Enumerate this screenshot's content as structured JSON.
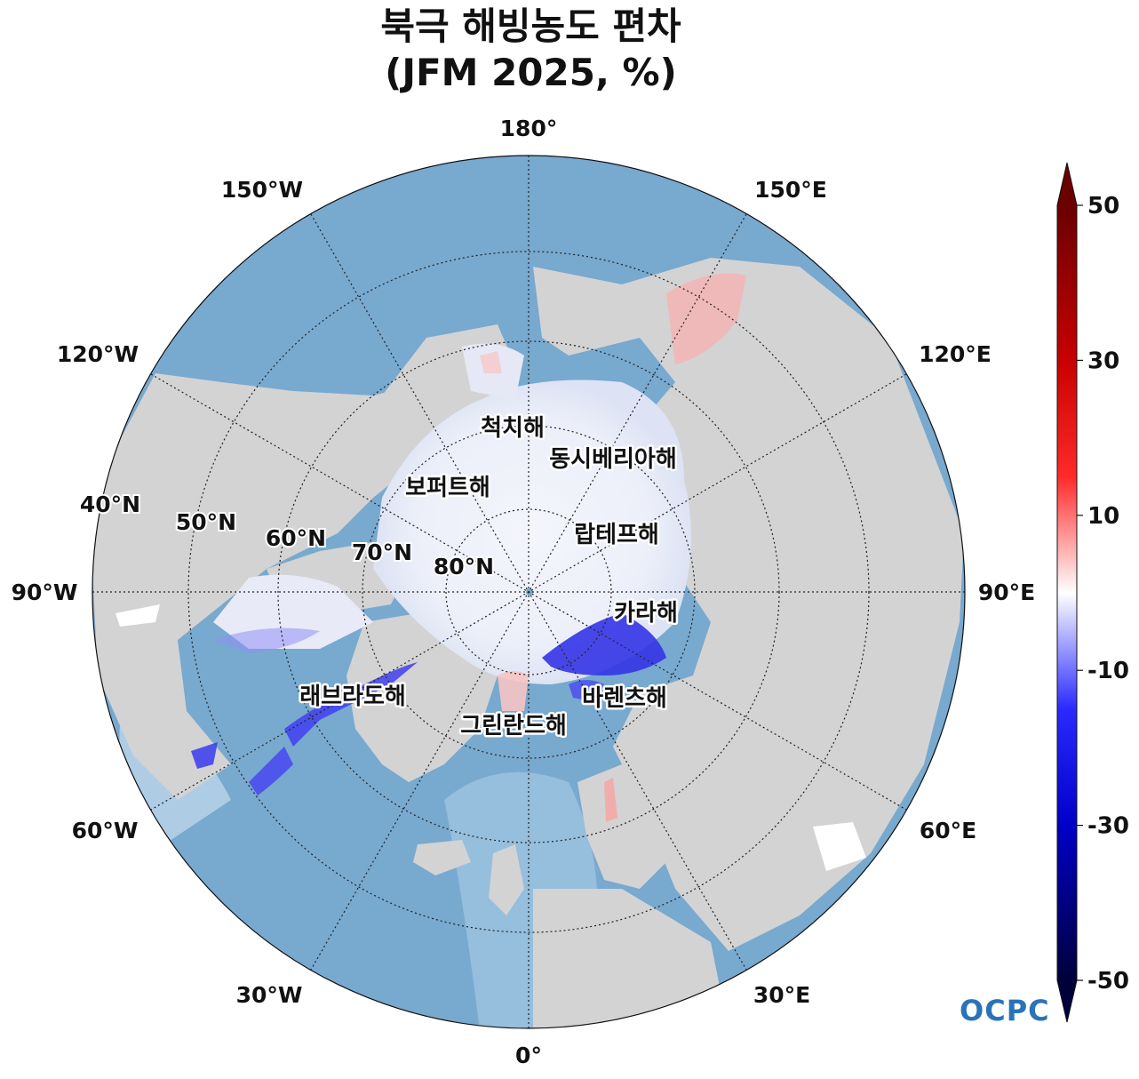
{
  "title": {
    "line1": "북극 해빙농도 편차",
    "line2": "(JFM 2025, %)"
  },
  "map": {
    "projection": "north-polar-stereographic",
    "longitude_labels": [
      {
        "lon": 180,
        "text": "180°"
      },
      {
        "lon": 150,
        "text": "150°E"
      },
      {
        "lon": 120,
        "text": "120°E"
      },
      {
        "lon": 90,
        "text": "90°E"
      },
      {
        "lon": 60,
        "text": "60°E"
      },
      {
        "lon": 30,
        "text": "30°E"
      },
      {
        "lon": 0,
        "text": "0°"
      },
      {
        "lon": -30,
        "text": "30°W"
      },
      {
        "lon": -60,
        "text": "60°W"
      },
      {
        "lon": -90,
        "text": "90°W"
      },
      {
        "lon": -120,
        "text": "120°W"
      },
      {
        "lon": -150,
        "text": "150°W"
      }
    ],
    "latitude_labels": [
      {
        "lat": 40,
        "text": "40°N"
      },
      {
        "lat": 50,
        "text": "50°N"
      },
      {
        "lat": 60,
        "text": "60°N"
      },
      {
        "lat": 70,
        "text": "70°N"
      },
      {
        "lat": 80,
        "text": "80°N"
      }
    ],
    "sea_labels": [
      {
        "id": "chukchi",
        "text": "척치해"
      },
      {
        "id": "east-siberian",
        "text": "동시베리아해"
      },
      {
        "id": "beaufort",
        "text": "보퍼트해"
      },
      {
        "id": "laptev",
        "text": "랍테프해"
      },
      {
        "id": "kara",
        "text": "카라해"
      },
      {
        "id": "labrador",
        "text": "래브라도해"
      },
      {
        "id": "barents",
        "text": "바렌츠해"
      },
      {
        "id": "greenland",
        "text": "그린란드해"
      }
    ],
    "colors": {
      "ocean": "#78a9cf",
      "land": "#d3d3d3",
      "ice_neutral": "#f2f4fb",
      "negative_anomaly": "#2020e0",
      "positive_anomaly": "#f4a8a8"
    }
  },
  "colorbar": {
    "min": -50,
    "max": 50,
    "ticks": [
      {
        "value": 50,
        "text": "50"
      },
      {
        "value": 30,
        "text": "30"
      },
      {
        "value": 10,
        "text": "10"
      },
      {
        "value": -10,
        "text": "-10"
      },
      {
        "value": -30,
        "text": "-30"
      },
      {
        "value": -50,
        "text": "-50"
      }
    ],
    "extend": "both",
    "colors": [
      "#00003a",
      "#0000c8",
      "#2a2aff",
      "#ffffff",
      "#ff2a2a",
      "#c80000",
      "#6a0000"
    ]
  },
  "logo": "OCPC"
}
